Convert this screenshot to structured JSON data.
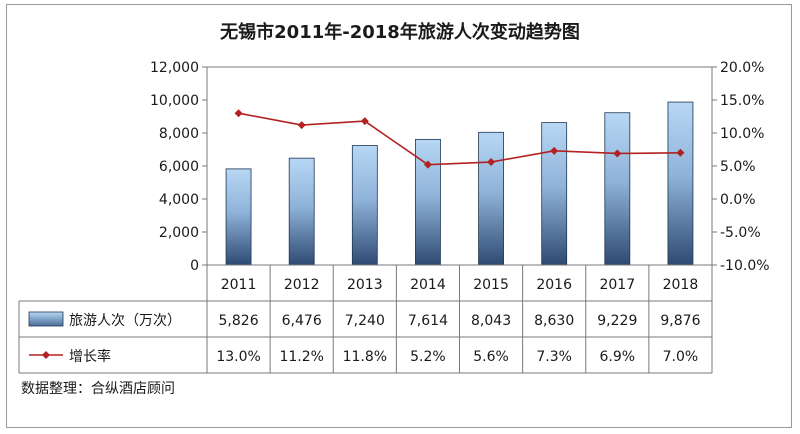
{
  "chart_data": {
    "type": "bar",
    "title": "无锡市2011年-2018年旅游人次变动趋势图",
    "categories": [
      "2011",
      "2012",
      "2013",
      "2014",
      "2015",
      "2016",
      "2017",
      "2018"
    ],
    "series": [
      {
        "name": "旅游人次（万次）",
        "type": "bar",
        "axis": "left",
        "values": [
          5826,
          6476,
          7240,
          7614,
          8043,
          8630,
          9229,
          9876
        ],
        "value_labels": [
          "5,826",
          "6,476",
          "7,240",
          "7,614",
          "8,043",
          "8,630",
          "9,229",
          "9,876"
        ]
      },
      {
        "name": "增长率",
        "type": "line",
        "axis": "right",
        "values": [
          13.0,
          11.2,
          11.8,
          5.2,
          5.6,
          7.3,
          6.9,
          7.0
        ],
        "value_labels": [
          "13.0%",
          "11.2%",
          "11.8%",
          "5.2%",
          "5.6%",
          "7.3%",
          "6.9%",
          "7.0%"
        ]
      }
    ],
    "y_left": {
      "range": [
        0,
        12000
      ],
      "tick_values": [
        0,
        2000,
        4000,
        6000,
        8000,
        10000,
        12000
      ],
      "tick_labels": [
        "0",
        "2,000",
        "4,000",
        "6,000",
        "8,000",
        "10,000",
        "12,000"
      ]
    },
    "y_right": {
      "range": [
        -10,
        20
      ],
      "tick_values": [
        -10,
        -5,
        0,
        5,
        10,
        15,
        20
      ],
      "tick_labels": [
        "-10.0%",
        "-5.0%",
        "0.0%",
        "5.0%",
        "10.0%",
        "15.0%",
        "20.0%"
      ]
    },
    "grid": false,
    "legend": "data-table-left",
    "colors": {
      "bar_top": "#b7d7f4",
      "bar_bottom": "#2e4a73",
      "bar_border": "#1f3552",
      "line": "#b22222",
      "frame": "#7a7a7a"
    }
  },
  "source_note": "数据整理：合纵酒店顾问"
}
